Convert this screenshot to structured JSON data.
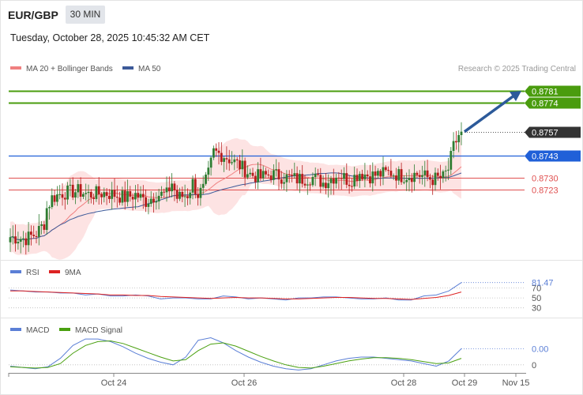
{
  "header": {
    "symbol": "EUR/GBP",
    "timeframe": "30 MIN",
    "datetime": "Tuesday, October 28, 2025 10:45:32 AM CET"
  },
  "legend": {
    "ma20": "MA 20 + Bollinger Bands",
    "ma50": "MA 50",
    "copyright": "Research © 2025 Trading Central"
  },
  "colors": {
    "up": "#2f7d32",
    "down": "#b71c1c",
    "ma20": "#f08080",
    "ma50": "#3d5a99",
    "target": "#4a9c0e",
    "pivot": "#2060d8",
    "support": "#e05050",
    "rsi": "#5b7fd6",
    "rsi_ma": "#dd2222",
    "macd": "#5b7fd6",
    "macd_signal": "#4aa010"
  },
  "chart_data": [
    {
      "type": "candlestick",
      "title": "EUR/GBP",
      "ylim": [
        0.8695,
        0.8788
      ],
      "x_ticks": [
        "Oct 24",
        "Oct 26",
        "Oct 28",
        "Oct 29",
        "Nov 15"
      ],
      "levels": [
        {
          "label": "0.8781",
          "value": 0.8781,
          "role": "target"
        },
        {
          "label": "0.8774",
          "value": 0.8774,
          "role": "target"
        },
        {
          "label": "0.8757",
          "value": 0.8757,
          "role": "last"
        },
        {
          "label": "0.8743",
          "value": 0.8743,
          "role": "pivot"
        },
        {
          "label": "0.8730",
          "value": 0.873,
          "role": "support"
        },
        {
          "label": "0.8723",
          "value": 0.8723,
          "role": "support"
        }
      ],
      "close_waypoints": [
        [
          0,
          0.8695
        ],
        [
          6,
          0.8694
        ],
        [
          10,
          0.8697
        ],
        [
          13,
          0.8703
        ],
        [
          14,
          0.8712
        ],
        [
          16,
          0.8718
        ],
        [
          20,
          0.8721
        ],
        [
          26,
          0.8722
        ],
        [
          30,
          0.872
        ],
        [
          36,
          0.8721
        ],
        [
          40,
          0.872
        ],
        [
          44,
          0.8718
        ],
        [
          48,
          0.872
        ],
        [
          52,
          0.8716
        ],
        [
          56,
          0.872
        ],
        [
          60,
          0.872
        ],
        [
          62,
          0.8727
        ],
        [
          64,
          0.8718
        ],
        [
          68,
          0.872
        ],
        [
          70,
          0.8727
        ],
        [
          72,
          0.872
        ],
        [
          74,
          0.8723
        ],
        [
          76,
          0.8732
        ],
        [
          78,
          0.8745
        ],
        [
          82,
          0.8743
        ],
        [
          88,
          0.8737
        ],
        [
          92,
          0.8732
        ],
        [
          96,
          0.873
        ],
        [
          100,
          0.8732
        ],
        [
          106,
          0.873
        ],
        [
          110,
          0.8729
        ],
        [
          116,
          0.873
        ],
        [
          120,
          0.8727
        ],
        [
          126,
          0.8732
        ],
        [
          130,
          0.8728
        ],
        [
          134,
          0.8733
        ],
        [
          138,
          0.8731
        ],
        [
          142,
          0.8732
        ],
        [
          146,
          0.8733
        ],
        [
          150,
          0.8731
        ],
        [
          156,
          0.8732
        ],
        [
          162,
          0.8729
        ],
        [
          166,
          0.873
        ],
        [
          168,
          0.8735
        ],
        [
          170,
          0.8748
        ],
        [
          172,
          0.8755
        ],
        [
          173,
          0.8757
        ]
      ],
      "arrow": {
        "from": [
          173,
          0.8757
        ],
        "to": [
          196,
          0.8781
        ]
      }
    },
    {
      "type": "line",
      "title": "RSI",
      "series": [
        {
          "name": "RSI",
          "values": [
            66,
            64,
            62,
            62,
            60,
            60,
            56,
            58,
            54,
            54,
            56,
            54,
            48,
            50,
            50,
            48,
            48,
            54,
            52,
            48,
            50,
            48,
            46,
            50,
            50,
            52,
            52,
            50,
            48,
            48,
            50,
            46,
            46,
            54,
            56,
            64,
            81
          ]
        },
        {
          "name": "9MA",
          "values": [
            64,
            64,
            63,
            62,
            61,
            60,
            59,
            58,
            56,
            56,
            55,
            55,
            53,
            52,
            51,
            50,
            49,
            50,
            51,
            50,
            50,
            49,
            48,
            48,
            49,
            50,
            51,
            51,
            50,
            49,
            49,
            48,
            47,
            49,
            51,
            55,
            62
          ]
        }
      ],
      "last_value_label": "81.47",
      "y_ticks": [
        "70",
        "50",
        "30"
      ],
      "ylim": [
        20,
        90
      ]
    },
    {
      "type": "line",
      "title": "MACD",
      "series": [
        {
          "name": "MACD",
          "values": [
            -2,
            -4,
            -6,
            -3,
            10,
            30,
            40,
            40,
            36,
            28,
            18,
            10,
            4,
            0,
            12,
            38,
            42,
            34,
            22,
            12,
            4,
            -2,
            -6,
            -8,
            -6,
            0,
            6,
            10,
            12,
            12,
            10,
            8,
            6,
            2,
            -2,
            6,
            25
          ]
        },
        {
          "name": "MACD Signal",
          "values": [
            -3,
            -4,
            -5,
            -4,
            2,
            18,
            30,
            36,
            37,
            33,
            26,
            19,
            12,
            6,
            8,
            22,
            32,
            34,
            29,
            21,
            13,
            6,
            0,
            -4,
            -5,
            -2,
            2,
            6,
            9,
            11,
            11,
            10,
            8,
            5,
            2,
            3,
            10
          ]
        }
      ],
      "last_value_label": "0.00",
      "y_ticks": [
        "0"
      ],
      "ylim": [
        -10,
        45
      ]
    }
  ]
}
